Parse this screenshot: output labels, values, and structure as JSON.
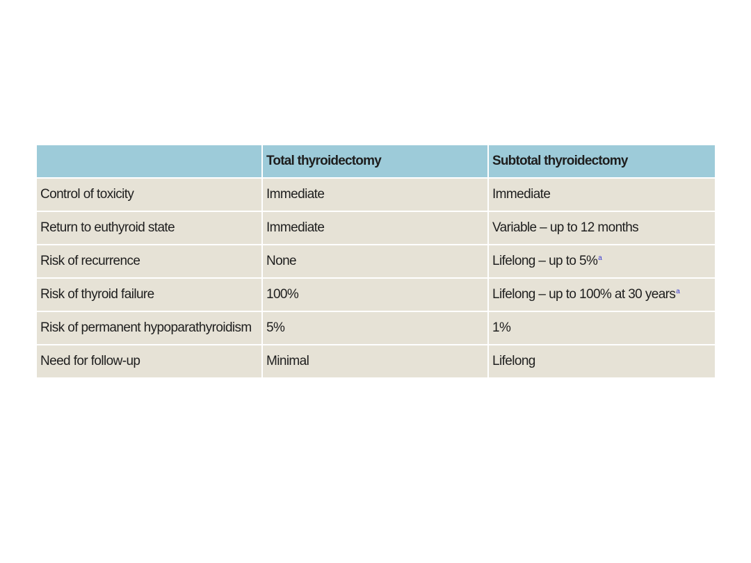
{
  "table": {
    "headers": [
      "",
      "Total thyroidectomy",
      "Subtotal thyroidectomy"
    ],
    "rows": [
      {
        "label": "Control of toxicity",
        "total": "Immediate",
        "subtotal": "Immediate",
        "subtotal_note": ""
      },
      {
        "label": "Return to euthyroid state",
        "total": "Immediate",
        "subtotal": "Variable – up to 12 months",
        "subtotal_note": ""
      },
      {
        "label": "Risk of recurrence",
        "total": "None",
        "subtotal": "Lifelong – up to 5%",
        "subtotal_note": "a"
      },
      {
        "label": "Risk of thyroid failure",
        "total": "100%",
        "subtotal": "Lifelong – up to 100% at 30 years",
        "subtotal_note": "a"
      },
      {
        "label": "Risk of permanent hypoparathyroidism",
        "total": "5%",
        "subtotal": "1%",
        "subtotal_note": ""
      },
      {
        "label": "Need for follow-up",
        "total": "Minimal",
        "subtotal": "Lifelong",
        "subtotal_note": ""
      }
    ]
  },
  "colors": {
    "header_bg": "#9dcbd9",
    "row_bg": "#e6e2d6",
    "footnote": "#3a3ad0"
  }
}
